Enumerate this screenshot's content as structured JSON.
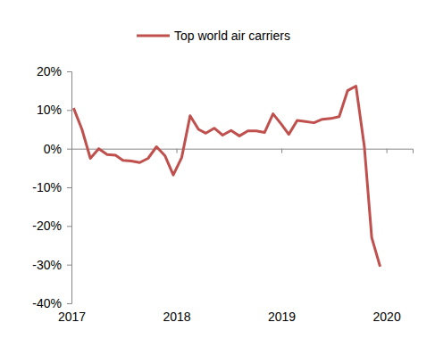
{
  "chart_data": {
    "type": "line",
    "x": [
      2017.02,
      2017.1,
      2017.18,
      2017.26,
      2017.34,
      2017.42,
      2017.49,
      2017.57,
      2017.65,
      2017.73,
      2017.81,
      2017.89,
      2017.97,
      2018.05,
      2018.13,
      2018.21,
      2018.28,
      2018.36,
      2018.44,
      2018.52,
      2018.6,
      2018.68,
      2018.76,
      2018.84,
      2018.92,
      2019.0,
      2019.07,
      2019.15,
      2019.23,
      2019.31,
      2019.39,
      2019.47,
      2019.55,
      2019.63,
      2019.71,
      2019.79,
      2019.86,
      2019.94
    ],
    "series": [
      {
        "name": "Top world air carriers",
        "color": "#c0504d",
        "values": [
          10.5,
          5,
          -2.5,
          0,
          -1.5,
          -1.7,
          -3,
          -3.2,
          -3.6,
          -2.5,
          0.5,
          -1.8,
          -6.8,
          -2.3,
          8.5,
          5,
          4,
          5.3,
          3.5,
          4.7,
          3.3,
          4.6,
          4.6,
          4.2,
          9,
          6.3,
          3.7,
          7.3,
          7,
          6.7,
          7.6,
          7.8,
          8.3,
          15,
          16.2,
          0.5,
          -23,
          -30.5
        ]
      }
    ],
    "xlim": [
      2017,
      2020.25
    ],
    "xticks": [
      2017,
      2018,
      2019,
      2020
    ],
    "ylim": [
      -40,
      20
    ],
    "yticks": [
      {
        "value": -40,
        "label": "-40%"
      },
      {
        "value": -30,
        "label": "-30%"
      },
      {
        "value": -20,
        "label": "-20%"
      },
      {
        "value": -10,
        "label": "-10%"
      },
      {
        "value": 0,
        "label": "0%"
      },
      {
        "value": 10,
        "label": "10%"
      },
      {
        "value": 20,
        "label": "20%"
      }
    ],
    "grid": false,
    "legend": "top"
  }
}
